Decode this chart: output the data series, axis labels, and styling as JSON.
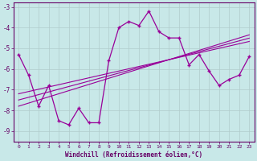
{
  "xlabel": "Windchill (Refroidissement éolien,°C)",
  "background_color": "#c8e8e8",
  "grid_color": "#b0cccc",
  "line_color": "#990099",
  "text_color": "#660066",
  "x_hours": [
    0,
    1,
    2,
    3,
    4,
    5,
    6,
    7,
    8,
    9,
    10,
    11,
    12,
    13,
    14,
    15,
    16,
    17,
    18,
    19,
    20,
    21,
    22,
    23
  ],
  "y_main": [
    -5.3,
    -6.3,
    -7.8,
    -6.8,
    -8.5,
    -8.7,
    -7.9,
    -8.6,
    -8.6,
    -5.6,
    -4.0,
    -3.7,
    -3.9,
    -3.2,
    -4.2,
    -4.5,
    -4.5,
    -5.8,
    -5.3,
    -6.1,
    -6.8,
    -6.5,
    -6.3,
    -5.4
  ],
  "y_reg1": [
    -7.8,
    -7.65,
    -7.5,
    -7.35,
    -7.2,
    -7.05,
    -6.9,
    -6.75,
    -6.6,
    -6.45,
    -6.3,
    -6.15,
    -6.0,
    -5.85,
    -5.7,
    -5.55,
    -5.4,
    -5.25,
    -5.1,
    -4.95,
    -4.8,
    -4.65,
    -4.5,
    -4.35
  ],
  "y_reg2": [
    -7.5,
    -7.37,
    -7.24,
    -7.11,
    -6.98,
    -6.85,
    -6.72,
    -6.59,
    -6.46,
    -6.33,
    -6.2,
    -6.07,
    -5.94,
    -5.81,
    -5.68,
    -5.55,
    -5.42,
    -5.29,
    -5.16,
    -5.03,
    -4.9,
    -4.77,
    -4.64,
    -4.51
  ],
  "y_reg3": [
    -7.2,
    -7.09,
    -6.98,
    -6.87,
    -6.76,
    -6.65,
    -6.54,
    -6.43,
    -6.32,
    -6.21,
    -6.1,
    -5.99,
    -5.88,
    -5.77,
    -5.66,
    -5.55,
    -5.44,
    -5.33,
    -5.22,
    -5.11,
    -5.0,
    -4.89,
    -4.78,
    -4.67
  ],
  "ylim": [
    -9.5,
    -2.8
  ],
  "xlim": [
    -0.5,
    23.5
  ],
  "yticks": [
    -9,
    -8,
    -7,
    -6,
    -5,
    -4,
    -3
  ],
  "xticks": [
    0,
    1,
    2,
    3,
    4,
    5,
    6,
    7,
    8,
    9,
    10,
    11,
    12,
    13,
    14,
    15,
    16,
    17,
    18,
    19,
    20,
    21,
    22,
    23
  ]
}
